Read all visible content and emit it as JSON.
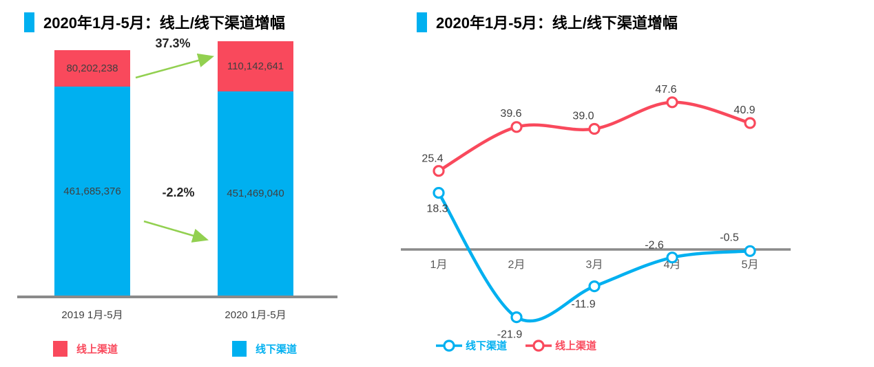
{
  "colors": {
    "accent_blue": "#00b0f0",
    "arrow_green": "#92d050",
    "axis_gray": "#8a8a8a"
  },
  "chart_data": [
    {
      "type": "bar",
      "subtype": "stacked",
      "title": "2020年1月-5月：线上/线下渠道增幅",
      "categories": [
        "2019 1月-5月",
        "2020 1月-5月"
      ],
      "series": [
        {
          "name": "线上渠道",
          "color": "#f9495c",
          "values": [
            80202238,
            110142641
          ],
          "labels": [
            "80,202,238",
            "110,142,641"
          ]
        },
        {
          "name": "线下渠道",
          "color": "#00b0f0",
          "values": [
            461685376,
            451469040
          ],
          "labels": [
            "461,685,376",
            "451,469,040"
          ]
        }
      ],
      "annotations": [
        {
          "text": "37.3%",
          "applies_to": "线上渠道",
          "direction": "up"
        },
        {
          "text": "-2.2%",
          "applies_to": "线下渠道",
          "direction": "down"
        }
      ],
      "legend": [
        "线上渠道",
        "线下渠道"
      ],
      "legend_position": "bottom",
      "value_axis": "hidden",
      "grid": false
    },
    {
      "type": "line",
      "title": "2020年1月-5月：线上/线下渠道增幅",
      "categories": [
        "1月",
        "2月",
        "3月",
        "4月",
        "5月"
      ],
      "series": [
        {
          "name": "线上渠道",
          "color": "#f9495c",
          "values": [
            25.4,
            39.6,
            39.0,
            47.6,
            40.9
          ],
          "labels": [
            "25.4",
            "39.6",
            "39.0",
            "47.6",
            "40.9"
          ],
          "label_offsets": [
            [
              -9,
              -13
            ],
            [
              -8,
              -15
            ],
            [
              -16,
              -14
            ],
            [
              -9,
              -14
            ],
            [
              -8,
              -14
            ]
          ]
        },
        {
          "name": "线下渠道",
          "color": "#00b0f0",
          "values": [
            18.3,
            -21.9,
            -11.9,
            -2.6,
            -0.5
          ],
          "labels": [
            "18.3",
            "-21.9",
            "-11.9",
            "-2.6",
            "-0.5"
          ],
          "label_offsets": [
            [
              -2,
              28
            ],
            [
              -10,
              30
            ],
            [
              -16,
              31
            ],
            [
              -26,
              -13
            ],
            [
              -30,
              -15
            ]
          ]
        }
      ],
      "legend": [
        "线下渠道",
        "线上渠道"
      ],
      "legend_position": "bottom",
      "baseline": 0,
      "grid": false,
      "smooth": true
    }
  ]
}
